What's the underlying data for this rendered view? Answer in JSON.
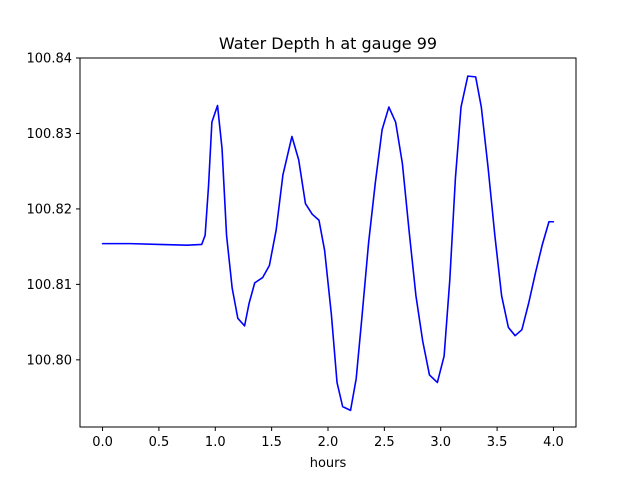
{
  "chart_data": {
    "type": "line",
    "title": "Water Depth h at gauge 99",
    "xlabel": "hours",
    "ylabel": "",
    "xlim": [
      -0.2,
      4.2
    ],
    "ylim": [
      100.7911,
      100.84
    ],
    "xticks": [
      0.0,
      0.5,
      1.0,
      1.5,
      2.0,
      2.5,
      3.0,
      3.5,
      4.0
    ],
    "xtick_labels": [
      "0.0",
      "0.5",
      "1.0",
      "1.5",
      "2.0",
      "2.5",
      "3.0",
      "3.5",
      "4.0"
    ],
    "yticks": [
      100.8,
      100.81,
      100.82,
      100.83,
      100.84
    ],
    "ytick_labels": [
      "100.80",
      "100.81",
      "100.82",
      "100.83",
      "100.84"
    ],
    "grid": false,
    "legend": "none",
    "series": [
      {
        "color": "#0000ff",
        "x": [
          0.0,
          0.25,
          0.5,
          0.75,
          0.88,
          0.91,
          0.94,
          0.97,
          1.02,
          1.06,
          1.1,
          1.15,
          1.2,
          1.26,
          1.3,
          1.35,
          1.42,
          1.48,
          1.54,
          1.6,
          1.68,
          1.74,
          1.8,
          1.86,
          1.92,
          1.97,
          2.03,
          2.08,
          2.13,
          2.2,
          2.25,
          2.3,
          2.36,
          2.42,
          2.48,
          2.54,
          2.6,
          2.66,
          2.72,
          2.78,
          2.84,
          2.9,
          2.97,
          3.03,
          3.08,
          3.13,
          3.18,
          3.24,
          3.31,
          3.36,
          3.42,
          3.48,
          3.54,
          3.6,
          3.66,
          3.72,
          3.78,
          3.84,
          3.9,
          3.96,
          4.0
        ],
        "y": [
          100.8154,
          100.8154,
          100.8153,
          100.8152,
          100.8153,
          100.8165,
          100.823,
          100.8315,
          100.8337,
          100.828,
          100.8165,
          100.8095,
          100.8055,
          100.8045,
          100.8075,
          100.8102,
          100.8109,
          100.8125,
          100.8172,
          100.8245,
          100.8296,
          100.8265,
          100.8207,
          100.8193,
          100.8185,
          100.8145,
          100.806,
          100.797,
          100.7938,
          100.7933,
          100.7975,
          100.8055,
          100.8155,
          100.8235,
          100.8305,
          100.8335,
          100.8315,
          100.826,
          100.817,
          100.8085,
          100.8025,
          100.798,
          100.797,
          100.8005,
          100.8105,
          100.824,
          100.8335,
          100.8376,
          100.8375,
          100.8335,
          100.8255,
          100.8165,
          100.8085,
          100.8043,
          100.8032,
          100.804,
          100.8075,
          100.8115,
          100.8152,
          100.8183,
          100.8183
        ]
      }
    ]
  }
}
